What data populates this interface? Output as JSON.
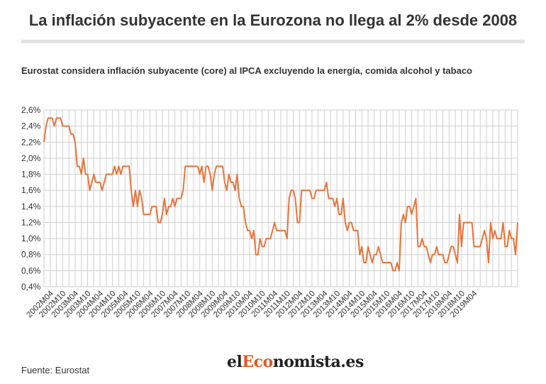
{
  "title": "La inflación subyacente en la Eurozona no llega al 2% desde 2008",
  "subtitle": "Eurostat considera inflación subyacente (core) al IPCA excluyendo la energía, comida alcohol y tabaco",
  "source": "Fuente: Eurostat",
  "logo": {
    "prefix": "el",
    "middle": "Eco",
    "suffix": "nomista.es"
  },
  "colors": {
    "line": "#e8743b",
    "grid": "#cfcfcf",
    "text": "#333333",
    "logo_accent": "#e8541f"
  },
  "chart_data": {
    "type": "line",
    "title": "La inflación subyacente en la Eurozona no llega al 2% desde 2008",
    "xlabel": "",
    "ylabel": "",
    "ylim": [
      0.4,
      2.6
    ],
    "y_ticks": [
      "0,4%",
      "0,6%",
      "0,8%",
      "1,0%",
      "1,2%",
      "1,4%",
      "1,6%",
      "1,8%",
      "2,0%",
      "2,2%",
      "2,4%",
      "2,6%"
    ],
    "x_tick_labels": [
      "2002M04",
      "2002M10",
      "2003M04",
      "2003M10",
      "2004M04",
      "2004M10",
      "2005M04",
      "2005M10",
      "2006M04",
      "2006M10",
      "2007M04",
      "2007M10",
      "2008M04",
      "2008M10",
      "2009M04",
      "2009M10",
      "2010M04",
      "2010M10",
      "2011M04",
      "2011M10",
      "2012M04",
      "2012M10",
      "2013M04",
      "2013M10",
      "2014M04",
      "2014M10",
      "2015M04",
      "2015M10",
      "2016M04",
      "2016M10",
      "2017M04",
      "2017M10",
      "2018M04",
      "2018M10",
      "2019M04"
    ],
    "grid": true,
    "series": [
      {
        "start": "2002M01",
        "values": [
          2.2,
          2.4,
          2.5,
          2.5,
          2.5,
          2.4,
          2.5,
          2.5,
          2.5,
          2.4,
          2.4,
          2.4,
          2.4,
          2.3,
          2.3,
          2.2,
          1.9,
          1.9,
          1.8,
          2.0,
          1.8,
          1.8,
          1.6,
          1.7,
          1.8,
          1.7,
          1.7,
          1.7,
          1.6,
          1.7,
          1.8,
          1.8,
          1.8,
          1.8,
          1.9,
          1.8,
          1.9,
          1.8,
          1.9,
          1.9,
          1.9,
          1.9,
          1.6,
          1.4,
          1.6,
          1.4,
          1.6,
          1.5,
          1.3,
          1.3,
          1.3,
          1.3,
          1.4,
          1.4,
          1.4,
          1.2,
          1.2,
          1.3,
          1.5,
          1.3,
          1.4,
          1.4,
          1.5,
          1.4,
          1.5,
          1.5,
          1.5,
          1.6,
          1.9,
          1.9,
          1.9,
          1.9,
          1.9,
          1.9,
          1.9,
          1.8,
          1.9,
          1.7,
          1.9,
          1.9,
          1.8,
          1.6,
          1.8,
          1.9,
          1.9,
          1.9,
          1.9,
          1.7,
          1.6,
          1.8,
          1.7,
          1.7,
          1.6,
          1.8,
          1.5,
          1.4,
          1.4,
          1.2,
          1.1,
          1.1,
          1.0,
          1.1,
          0.8,
          0.8,
          1.0,
          0.9,
          0.9,
          1.0,
          1.0,
          1.0,
          1.1,
          1.2,
          1.1,
          1.1,
          1.1,
          1.1,
          1.1,
          1.0,
          1.5,
          1.6,
          1.6,
          1.5,
          1.2,
          1.2,
          1.6,
          1.6,
          1.6,
          1.6,
          1.6,
          1.5,
          1.5,
          1.6,
          1.6,
          1.6,
          1.6,
          1.6,
          1.7,
          1.5,
          1.5,
          1.5,
          1.4,
          1.5,
          1.3,
          1.3,
          1.5,
          1.2,
          1.1,
          1.2,
          1.2,
          1.1,
          1.1,
          1.1,
          0.8,
          0.9,
          0.7,
          0.7,
          0.9,
          0.8,
          0.7,
          0.8,
          0.8,
          0.9,
          0.8,
          0.7,
          0.7,
          0.7,
          0.7,
          0.7,
          0.6,
          0.6,
          0.7,
          0.6,
          1.2,
          1.3,
          1.2,
          1.4,
          1.4,
          1.3,
          1.4,
          1.5,
          0.9,
          0.9,
          1.0,
          0.9,
          0.9,
          0.8,
          0.7,
          0.8,
          0.8,
          0.9,
          0.8,
          0.8,
          0.8,
          0.7,
          0.7,
          0.8,
          0.9,
          0.9,
          0.8,
          0.7,
          1.3,
          0.9,
          1.2,
          1.2,
          1.2,
          1.2,
          1.2,
          0.9,
          0.9,
          0.9,
          0.9,
          1.0,
          1.1,
          1.0,
          0.7,
          1.2,
          1.0,
          1.1,
          1.0,
          1.0,
          1.0,
          1.2,
          0.9,
          0.9,
          1.1,
          1.0,
          1.0,
          0.8,
          1.2
        ]
      }
    ]
  }
}
